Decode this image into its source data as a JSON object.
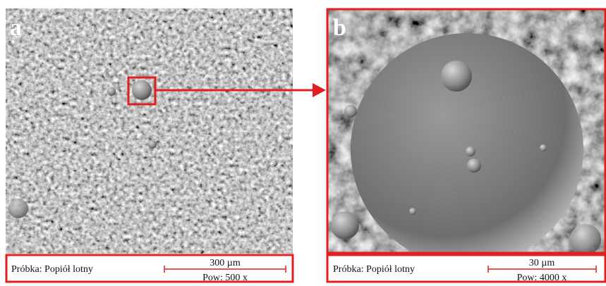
{
  "panels": [
    {
      "label": "a",
      "sample": "Próbka: Popiół lotny",
      "scale": "300 µm",
      "magnification": "Pow: 500 x"
    },
    {
      "label": "b",
      "sample": "Próbka: Popiół lotny",
      "scale": "30 µm",
      "magnification": "Pow: 4000 x"
    }
  ]
}
